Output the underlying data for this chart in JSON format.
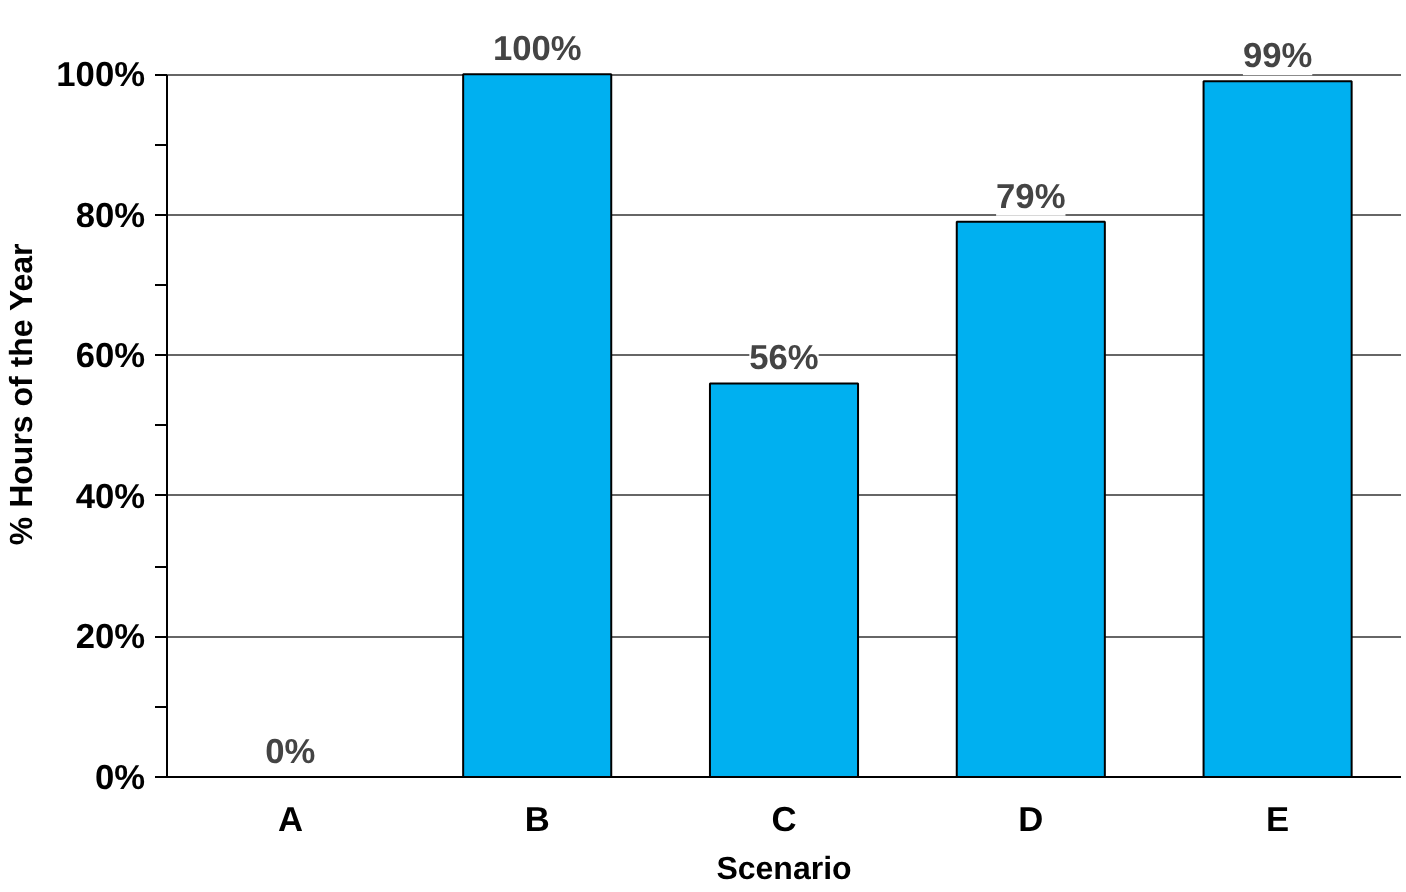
{
  "chart_data": {
    "type": "bar",
    "xlabel": "Scenario",
    "ylabel": "% Hours of the Year",
    "categories": [
      "A",
      "B",
      "C",
      "D",
      "E"
    ],
    "values": [
      0,
      100,
      56,
      79,
      99
    ],
    "value_labels": [
      "0%",
      "100%",
      "56%",
      "79%",
      "99%"
    ],
    "color": "#00b0f0",
    "ylim": [
      0,
      100
    ],
    "yticks": [
      {
        "value": 0,
        "label": "0%"
      },
      {
        "value": 10,
        "label": null
      },
      {
        "value": 20,
        "label": "20%"
      },
      {
        "value": 30,
        "label": null
      },
      {
        "value": 40,
        "label": "40%"
      },
      {
        "value": 50,
        "label": null
      },
      {
        "value": 60,
        "label": "60%"
      },
      {
        "value": 70,
        "label": null
      },
      {
        "value": 80,
        "label": "80%"
      },
      {
        "value": 90,
        "label": null
      },
      {
        "value": 100,
        "label": "100%"
      }
    ],
    "grid": "y"
  }
}
